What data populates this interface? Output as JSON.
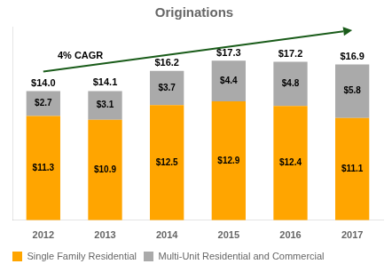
{
  "chart_data": {
    "type": "bar",
    "title": "Originations",
    "categories": [
      "2012",
      "2013",
      "2014",
      "2015",
      "2016",
      "2017"
    ],
    "series": [
      {
        "name": "Single Family Residential",
        "color": "#FFA500",
        "values": [
          11.3,
          10.9,
          12.5,
          12.9,
          12.4,
          11.1
        ],
        "value_labels": [
          "$11.3",
          "$10.9",
          "$12.5",
          "$12.9",
          "$12.4",
          "$11.1"
        ]
      },
      {
        "name": "Multi-Unit Residential and Commercial",
        "color": "#AAAAAA",
        "values": [
          2.7,
          3.1,
          3.7,
          4.4,
          4.8,
          5.8
        ],
        "value_labels": [
          "$2.7",
          "$3.1",
          "$3.7",
          "$4.4",
          "$4.8",
          "$5.8"
        ]
      }
    ],
    "totals": {
      "values": [
        14.0,
        14.1,
        16.2,
        17.3,
        17.2,
        16.9
      ],
      "value_labels": [
        "$14.0",
        "$14.1",
        "$16.2",
        "$17.3",
        "$17.2",
        "$16.9"
      ]
    },
    "stacked": true,
    "data_labels": true,
    "ylim": [
      0,
      21
    ],
    "tick_labels": "x",
    "grid": false,
    "legend": "bottom left",
    "annotations": [
      {
        "text": "4% CAGR",
        "color": "#1a5c1a"
      }
    ]
  }
}
